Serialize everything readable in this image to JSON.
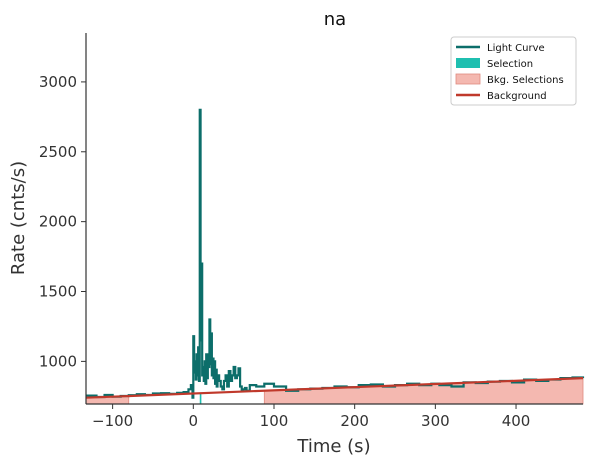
{
  "chart_data": {
    "type": "line",
    "title": "na",
    "xlabel": "Time (s)",
    "ylabel": "Rate (cnts/s)",
    "xlim": [
      -133,
      483
    ],
    "ylim": [
      695,
      3350
    ],
    "xticks": [
      -100,
      0,
      100,
      200,
      300,
      400
    ],
    "xtick_labels": [
      "−100",
      "0",
      "100",
      "200",
      "300",
      "400"
    ],
    "yticks": [
      1000,
      1500,
      2000,
      2500,
      3000
    ],
    "ytick_labels": [
      "1000",
      "1500",
      "2000",
      "2500",
      "3000"
    ],
    "grid": false,
    "legend_position": "top-right",
    "colors": {
      "light_curve": "#0c6e6a",
      "selection": "#1fbfb0",
      "bkg_selection_fill": "#f4b8b0",
      "bkg_selection_edge": "#e08a80",
      "background": "#c0392b"
    },
    "legend": [
      {
        "label": "Light Curve",
        "kind": "line",
        "color": "#0c6e6a"
      },
      {
        "label": "Selection",
        "kind": "patch",
        "color": "#1fbfb0"
      },
      {
        "label": "Bkg. Selections",
        "kind": "patch",
        "color": "#f4b8b0"
      },
      {
        "label": "Background",
        "kind": "line",
        "color": "#c0392b"
      }
    ],
    "series": [
      {
        "name": "Light Curve",
        "style": "step",
        "x": [
          -133,
          -120,
          -110,
          -100,
          -90,
          -80,
          -70,
          -60,
          -50,
          -40,
          -30,
          -20,
          -12,
          -6,
          -3,
          -1,
          0,
          1,
          2,
          3,
          4,
          5,
          6,
          7,
          8,
          9,
          10,
          11,
          12,
          13,
          14,
          15,
          16,
          17,
          18,
          19,
          20,
          21,
          22,
          23,
          24,
          25,
          26,
          27,
          28,
          29,
          30,
          32,
          34,
          36,
          38,
          40,
          42,
          44,
          46,
          48,
          50,
          52,
          54,
          56,
          58,
          60,
          62,
          64,
          66,
          70,
          78,
          88,
          100,
          115,
          130,
          145,
          160,
          175,
          190,
          205,
          220,
          235,
          250,
          265,
          280,
          295,
          305,
          320,
          335,
          350,
          365,
          380,
          395,
          410,
          425,
          440,
          455,
          470,
          483
        ],
        "y": [
          755,
          745,
          760,
          748,
          752,
          758,
          765,
          760,
          770,
          772,
          768,
          775,
          780,
          800,
          830,
          740,
          1180,
          920,
          1000,
          870,
          1050,
          900,
          1100,
          860,
          2800,
          1150,
          1700,
          900,
          960,
          860,
          1000,
          840,
          1050,
          880,
          1050,
          960,
          1300,
          980,
          1200,
          900,
          1020,
          880,
          1000,
          840,
          940,
          820,
          900,
          860,
          820,
          800,
          860,
          900,
          820,
          930,
          860,
          900,
          960,
          880,
          900,
          950,
          820,
          790,
          800,
          810,
          790,
          830,
          820,
          840,
          820,
          790,
          800,
          805,
          810,
          820,
          815,
          830,
          835,
          820,
          830,
          840,
          830,
          840,
          830,
          820,
          850,
          845,
          855,
          860,
          850,
          870,
          860,
          870,
          880,
          885,
          880
        ]
      },
      {
        "name": "Background",
        "style": "line",
        "x": [
          -133,
          483
        ],
        "y": [
          740,
          880
        ]
      }
    ],
    "selection": {
      "x": [
        8,
        10
      ]
    },
    "bkg_selections": [
      {
        "x": [
          -133,
          -80
        ]
      },
      {
        "x": [
          88,
          483
        ]
      }
    ]
  }
}
